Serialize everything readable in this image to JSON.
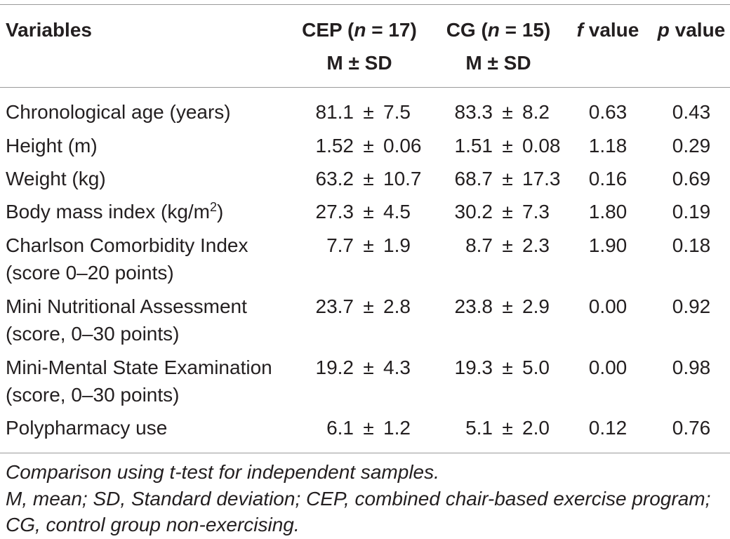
{
  "table": {
    "header": {
      "variables": "Variables",
      "cep": {
        "label_prefix": "CEP (",
        "n_symbol": "n",
        "label_suffix": " = 17)",
        "stat_label": "M ± SD"
      },
      "cg": {
        "label_prefix": "CG (",
        "n_symbol": "n",
        "label_suffix": " = 15)",
        "stat_label": "M ± SD"
      },
      "f_value": {
        "symbol": "f",
        "label": " value"
      },
      "p_value": {
        "symbol": "p",
        "label": " value"
      }
    },
    "pm_symbol": "±",
    "rows": [
      {
        "variable": [
          "Chronological age (years)"
        ],
        "cep": {
          "mean": "81.1",
          "sd": "7.5"
        },
        "cg": {
          "mean": "83.3",
          "sd": "8.2"
        },
        "f_value": "0.63",
        "p_value": "0.43"
      },
      {
        "variable": [
          "Height (m)"
        ],
        "cep": {
          "mean": "1.52",
          "sd": "0.06"
        },
        "cg": {
          "mean": "1.51",
          "sd": "0.08"
        },
        "f_value": "1.18",
        "p_value": "0.29"
      },
      {
        "variable": [
          "Weight (kg)"
        ],
        "cep": {
          "mean": "63.2",
          "sd": "10.7"
        },
        "cg": {
          "mean": "68.7",
          "sd": "17.3"
        },
        "f_value": "0.16",
        "p_value": "0.69"
      },
      {
        "variable": [
          "Body mass index (kg/m"
        ],
        "variable_superscript": "2",
        "variable_suffix": ")",
        "cep": {
          "mean": "27.3",
          "sd": "4.5"
        },
        "cg": {
          "mean": "30.2",
          "sd": "7.3"
        },
        "f_value": "1.80",
        "p_value": "0.19"
      },
      {
        "variable": [
          "Charlson Comorbidity Index",
          "(score 0–20 points)"
        ],
        "cep": {
          "mean": "7.7",
          "sd": "1.9"
        },
        "cg": {
          "mean": "8.7",
          "sd": "2.3"
        },
        "f_value": "1.90",
        "p_value": "0.18"
      },
      {
        "variable": [
          "Mini Nutritional Assessment",
          "(score, 0–30 points)"
        ],
        "cep": {
          "mean": "23.7",
          "sd": "2.8"
        },
        "cg": {
          "mean": "23.8",
          "sd": "2.9"
        },
        "f_value": "0.00",
        "p_value": "0.92"
      },
      {
        "variable": [
          "Mini-Mental State Examination",
          "(score, 0–30 points)"
        ],
        "cep": {
          "mean": "19.2",
          "sd": "4.3"
        },
        "cg": {
          "mean": "19.3",
          "sd": "5.0"
        },
        "f_value": "0.00",
        "p_value": "0.98"
      },
      {
        "variable": [
          "Polypharmacy use"
        ],
        "cep": {
          "mean": "6.1",
          "sd": "1.2"
        },
        "cg": {
          "mean": "5.1",
          "sd": "2.0"
        },
        "f_value": "0.12",
        "p_value": "0.76"
      }
    ]
  },
  "footnotes": [
    "Comparison using t-test for independent samples.",
    "M, mean; SD, Standard deviation; CEP, combined chair-based exercise program;",
    "CG, control group non-exercising."
  ],
  "colors": {
    "text": "#231f20",
    "rule": "#9a9a9a"
  }
}
